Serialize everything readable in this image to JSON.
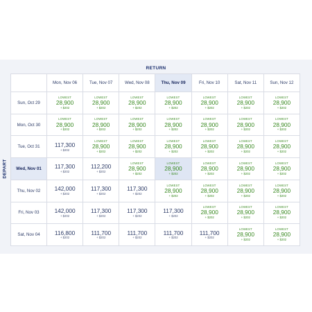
{
  "return_label": "RETURN",
  "depart_label": "DEPART",
  "columns": [
    "Mon, Nov 06",
    "Tue, Nov 07",
    "Wed, Nov 08",
    "Thu, Nov 09",
    "Fri, Nov 10",
    "Sat, Nov 11",
    "Sun, Nov 12"
  ],
  "highlight_col": 3,
  "highlight_row": 3,
  "lowest_label": "LOWEST",
  "rows": [
    {
      "label": "Sun, Oct 29",
      "cells": [
        {
          "price": "28,900",
          "tax": "+ $202",
          "lowest": true
        },
        {
          "price": "28,900",
          "tax": "+ $202",
          "lowest": true
        },
        {
          "price": "28,900",
          "tax": "+ $202",
          "lowest": true
        },
        {
          "price": "28,900",
          "tax": "+ $202",
          "lowest": true
        },
        {
          "price": "28,900",
          "tax": "+ $202",
          "lowest": true
        },
        {
          "price": "28,900",
          "tax": "+ $202",
          "lowest": true
        },
        {
          "price": "28,900",
          "tax": "+ $202",
          "lowest": true
        }
      ]
    },
    {
      "label": "Mon, Oct 30",
      "cells": [
        {
          "price": "28,900",
          "tax": "+ $202",
          "lowest": true
        },
        {
          "price": "28,900",
          "tax": "+ $202",
          "lowest": true
        },
        {
          "price": "28,900",
          "tax": "+ $202",
          "lowest": true
        },
        {
          "price": "28,900",
          "tax": "+ $202",
          "lowest": true
        },
        {
          "price": "28,900",
          "tax": "+ $202",
          "lowest": true
        },
        {
          "price": "28,900",
          "tax": "+ $202",
          "lowest": true
        },
        {
          "price": "28,900",
          "tax": "+ $202",
          "lowest": true
        }
      ]
    },
    {
      "label": "Tue, Oct 31",
      "cells": [
        {
          "price": "117,300",
          "tax": "+ $202",
          "lowest": false
        },
        {
          "price": "28,900",
          "tax": "+ $202",
          "lowest": true
        },
        {
          "price": "28,900",
          "tax": "+ $202",
          "lowest": true
        },
        {
          "price": "28,900",
          "tax": "+ $202",
          "lowest": true
        },
        {
          "price": "28,900",
          "tax": "+ $202",
          "lowest": true
        },
        {
          "price": "28,900",
          "tax": "+ $202",
          "lowest": true
        },
        {
          "price": "28,900",
          "tax": "+ $202",
          "lowest": true
        }
      ]
    },
    {
      "label": "Wed, Nov 01",
      "cells": [
        {
          "price": "117,300",
          "tax": "+ $202",
          "lowest": false
        },
        {
          "price": "112,200",
          "tax": "+ $202",
          "lowest": false
        },
        {
          "price": "28,900",
          "tax": "+ $202",
          "lowest": true
        },
        {
          "price": "28,900",
          "tax": "+ $202",
          "lowest": true
        },
        {
          "price": "28,900",
          "tax": "+ $202",
          "lowest": true
        },
        {
          "price": "28,900",
          "tax": "+ $202",
          "lowest": true
        },
        {
          "price": "28,900",
          "tax": "+ $202",
          "lowest": true
        }
      ]
    },
    {
      "label": "Thu, Nov 02",
      "cells": [
        {
          "price": "142,000",
          "tax": "+ $202",
          "lowest": false
        },
        {
          "price": "117,300",
          "tax": "+ $202",
          "lowest": false
        },
        {
          "price": "117,300",
          "tax": "+ $202",
          "lowest": false
        },
        {
          "price": "28,900",
          "tax": "+ $202",
          "lowest": true
        },
        {
          "price": "28,900",
          "tax": "+ $202",
          "lowest": true
        },
        {
          "price": "28,900",
          "tax": "+ $202",
          "lowest": true
        },
        {
          "price": "28,900",
          "tax": "+ $202",
          "lowest": true
        }
      ]
    },
    {
      "label": "Fri, Nov 03",
      "cells": [
        {
          "price": "142,000",
          "tax": "+ $202",
          "lowest": false
        },
        {
          "price": "117,300",
          "tax": "+ $202",
          "lowest": false
        },
        {
          "price": "117,300",
          "tax": "+ $202",
          "lowest": false
        },
        {
          "price": "117,300",
          "tax": "+ $202",
          "lowest": false
        },
        {
          "price": "28,900",
          "tax": "+ $202",
          "lowest": true
        },
        {
          "price": "28,900",
          "tax": "+ $202",
          "lowest": true
        },
        {
          "price": "28,900",
          "tax": "+ $202",
          "lowest": true
        }
      ]
    },
    {
      "label": "Sat, Nov 04",
      "cells": [
        {
          "price": "116,800",
          "tax": "+ $202",
          "lowest": false
        },
        {
          "price": "111,700",
          "tax": "+ $202",
          "lowest": false
        },
        {
          "price": "111,700",
          "tax": "+ $202",
          "lowest": false
        },
        {
          "price": "111,700",
          "tax": "+ $202",
          "lowest": false
        },
        {
          "price": "111,700",
          "tax": "+ $202",
          "lowest": false
        },
        {
          "price": "28,900",
          "tax": "+ $202",
          "lowest": true
        },
        {
          "price": "28,900",
          "tax": "+ $202",
          "lowest": true
        }
      ]
    }
  ]
}
